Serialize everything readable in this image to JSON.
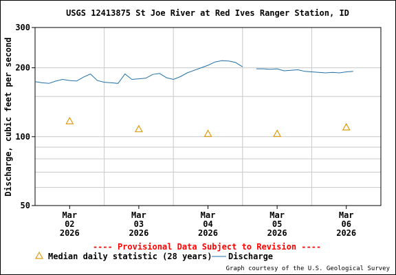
{
  "chart_data": {
    "type": "line",
    "title": "USGS 12413875 St Joe River at Red Ives Ranger Station, ID",
    "ylabel": "Discharge, cubic feet per second",
    "xlabel": "",
    "y_scale": "log",
    "ylim": [
      50,
      300
    ],
    "y_ticks": [
      "300",
      "200",
      "100",
      "50"
    ],
    "y_tick_values": [
      300,
      200,
      100,
      50
    ],
    "y_minor_gridlines": [
      60,
      70,
      80,
      90,
      150
    ],
    "grid": true,
    "xlim": [
      0,
      5
    ],
    "x_tick_labels": [
      {
        "month": "Mar",
        "day": "02",
        "year": "2026"
      },
      {
        "month": "Mar",
        "day": "03",
        "year": "2026"
      },
      {
        "month": "Mar",
        "day": "04",
        "year": "2026"
      },
      {
        "month": "Mar",
        "day": "05",
        "year": "2026"
      },
      {
        "month": "Mar",
        "day": "06",
        "year": "2026"
      }
    ],
    "x_tick_positions": [
      0.5,
      1.5,
      2.5,
      3.5,
      4.5
    ],
    "series": [
      {
        "name": "Discharge",
        "color": "#1f6fa8",
        "style": "line",
        "x": [
          0.0,
          0.1,
          0.2,
          0.3,
          0.4,
          0.5,
          0.6,
          0.7,
          0.8,
          0.9,
          1.0,
          1.1,
          1.2,
          1.3,
          1.4,
          1.5,
          1.6,
          1.7,
          1.8,
          1.9,
          2.0,
          2.1,
          2.2,
          2.3,
          2.4,
          2.5,
          2.6,
          2.7,
          2.8,
          2.9,
          3.0,
          3.1,
          3.2,
          3.3,
          3.4,
          3.5,
          3.6,
          3.7,
          3.8,
          3.9,
          4.0,
          4.1,
          4.2,
          4.3,
          4.4,
          4.5,
          4.6
        ],
        "y": [
          174,
          172,
          171,
          175,
          178,
          176,
          175,
          182,
          188,
          176,
          173,
          172,
          171,
          188,
          178,
          179,
          180,
          187,
          189,
          181,
          178,
          183,
          190,
          195,
          200,
          205,
          212,
          215,
          214,
          211,
          202,
          null,
          198,
          198,
          197,
          198,
          194,
          195,
          196,
          193,
          192,
          191,
          190,
          191,
          190,
          192,
          193
        ]
      },
      {
        "name": "Median daily statistic (28 years)",
        "color": "#e09a0e",
        "style": "triangle",
        "x": [
          0.5,
          1.5,
          2.5,
          3.5,
          4.5
        ],
        "y": [
          117,
          108,
          103,
          103,
          110
        ]
      }
    ],
    "legend": {
      "placement": "bottom",
      "items": [
        "Median daily statistic (28 years)",
        "Discharge"
      ]
    }
  },
  "banner": "---- Provisional Data Subject to Revision ----",
  "credit": "Graph courtesy of the U.S. Geological Survey",
  "colors": {
    "banner": "#ff0000",
    "grid": "#c8c8c8",
    "axis": "#000000"
  }
}
